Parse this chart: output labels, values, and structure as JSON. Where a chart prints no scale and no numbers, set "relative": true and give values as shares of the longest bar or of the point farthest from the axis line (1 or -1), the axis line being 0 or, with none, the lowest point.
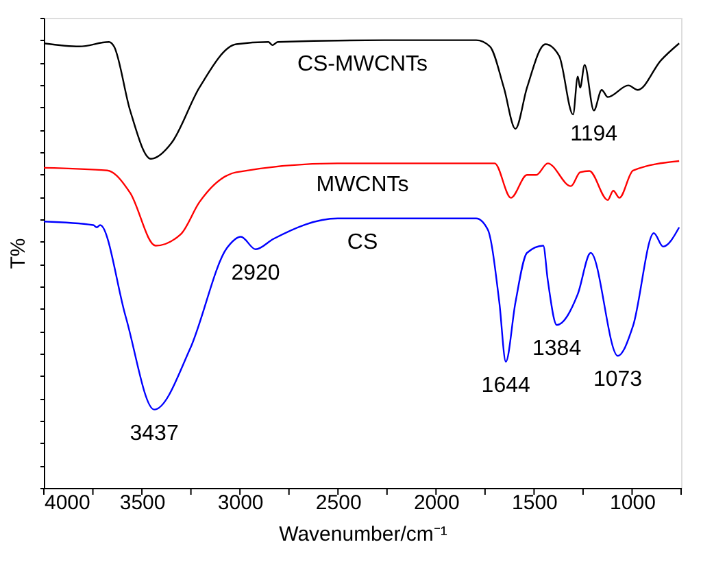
{
  "chart_data": {
    "type": "line",
    "relative": true,
    "tick_labels": "x",
    "line_style": "solid",
    "xlabel": "Wavenumber/cm⁻¹",
    "ylabel": "T%",
    "xlim": [
      4000,
      750
    ],
    "xticks": [
      4000,
      {
        "value": 3750,
        "label": null
      },
      3500,
      {
        "value": 3250,
        "label": null
      },
      3000,
      {
        "value": 2750,
        "label": null
      },
      2500,
      {
        "value": 2250,
        "label": null
      },
      2000,
      {
        "value": 1750,
        "label": null
      },
      1500,
      {
        "value": 1250,
        "label": null
      },
      1000,
      {
        "value": 750,
        "label": null
      }
    ],
    "series": [
      {
        "name": "CS-MWCNTs",
        "color": "#000000",
        "x": [
          4000,
          3819,
          3668,
          3642,
          3560,
          3454,
          3348,
          3207,
          3019,
          2854,
          2835,
          2807,
          2265,
          1795,
          1725,
          1654,
          1595,
          1536,
          1442,
          1372,
          1301,
          1277,
          1265,
          1242,
          1195,
          1155,
          1124,
          1019,
          971,
          853,
          760
        ],
        "values": [
          0.993,
          0.986,
          0.996,
          0.986,
          0.843,
          0.735,
          0.771,
          0.894,
          0.991,
          0.996,
          0.989,
          0.996,
          1.0,
          1.0,
          0.986,
          0.894,
          0.802,
          0.894,
          0.991,
          0.965,
          0.834,
          0.919,
          0.894,
          0.945,
          0.843,
          0.889,
          0.873,
          0.899,
          0.889,
          0.955,
          0.993
        ]
      },
      {
        "name": "MWCNTs",
        "color": "#ff0000",
        "x": [
          4000,
          3677,
          3560,
          3430,
          3301,
          3207,
          3019,
          2503,
          1701,
          1618,
          1536,
          1489,
          1430,
          1312,
          1265,
          1218,
          1124,
          1096,
          1065,
          995,
          760
        ],
        "values": [
          0.715,
          0.709,
          0.659,
          0.541,
          0.567,
          0.638,
          0.705,
          0.725,
          0.725,
          0.648,
          0.699,
          0.699,
          0.725,
          0.674,
          0.705,
          0.708,
          0.643,
          0.664,
          0.648,
          0.709,
          0.73
        ]
      },
      {
        "name": "CS",
        "color": "#0000ff",
        "x": [
          4000,
          3748,
          3730,
          3713,
          3583,
          3437,
          3254,
          3066,
          2995,
          2920,
          2830,
          2501,
          1795,
          1736,
          1677,
          1644,
          1595,
          1536,
          1453,
          1430,
          1384,
          1277,
          1211,
          1073,
          995,
          889,
          842,
          760
        ],
        "values": [
          0.595,
          0.587,
          0.582,
          0.587,
          0.383,
          0.175,
          0.311,
          0.536,
          0.561,
          0.533,
          0.556,
          0.602,
          0.602,
          0.577,
          0.414,
          0.282,
          0.414,
          0.525,
          0.541,
          0.464,
          0.364,
          0.433,
          0.525,
          0.295,
          0.362,
          0.569,
          0.539,
          0.582
        ]
      }
    ],
    "annotations": [
      {
        "text": "1194",
        "x": 1195,
        "y": 0.843
      },
      {
        "text": "3437",
        "x": 3437,
        "y": 0.175
      },
      {
        "text": "2920",
        "x": 2920,
        "y": 0.533
      },
      {
        "text": "1644",
        "x": 1644,
        "y": 0.282
      },
      {
        "text": "1384",
        "x": 1384,
        "y": 0.364
      },
      {
        "text": "1073",
        "x": 1073,
        "y": 0.295
      }
    ]
  }
}
